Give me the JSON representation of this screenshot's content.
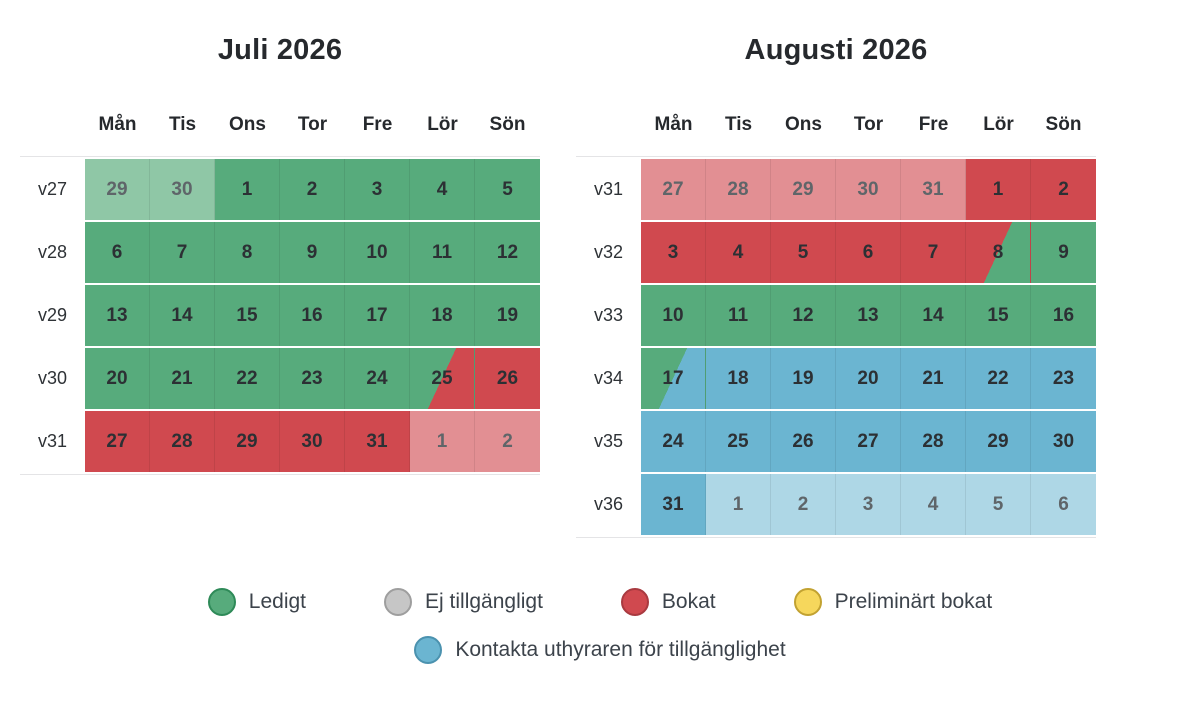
{
  "colors": {
    "free": "#57ab7c",
    "free_faded": "#8fc7a6",
    "booked": "#d0494f",
    "booked_faded": "#e28f93",
    "contact": "#6bb5d1",
    "contact_faded": "#aed7e6",
    "faded_text": "#5f6569",
    "day_text": "#2c3034"
  },
  "weekday_headers": [
    "Mån",
    "Tis",
    "Ons",
    "Tor",
    "Fre",
    "Lör",
    "Sön"
  ],
  "calendars": [
    {
      "title": "Juli 2026",
      "weeks": [
        {
          "label": "v27",
          "days": [
            {
              "n": "29",
              "s": "free-faded"
            },
            {
              "n": "30",
              "s": "free-faded"
            },
            {
              "n": "1",
              "s": "free"
            },
            {
              "n": "2",
              "s": "free"
            },
            {
              "n": "3",
              "s": "free"
            },
            {
              "n": "4",
              "s": "free"
            },
            {
              "n": "5",
              "s": "free"
            }
          ]
        },
        {
          "label": "v28",
          "days": [
            {
              "n": "6",
              "s": "free"
            },
            {
              "n": "7",
              "s": "free"
            },
            {
              "n": "8",
              "s": "free"
            },
            {
              "n": "9",
              "s": "free"
            },
            {
              "n": "10",
              "s": "free"
            },
            {
              "n": "11",
              "s": "free"
            },
            {
              "n": "12",
              "s": "free"
            }
          ]
        },
        {
          "label": "v29",
          "days": [
            {
              "n": "13",
              "s": "free"
            },
            {
              "n": "14",
              "s": "free"
            },
            {
              "n": "15",
              "s": "free"
            },
            {
              "n": "16",
              "s": "free"
            },
            {
              "n": "17",
              "s": "free"
            },
            {
              "n": "18",
              "s": "free"
            },
            {
              "n": "19",
              "s": "free"
            }
          ]
        },
        {
          "label": "v30",
          "days": [
            {
              "n": "20",
              "s": "free"
            },
            {
              "n": "21",
              "s": "free"
            },
            {
              "n": "22",
              "s": "free"
            },
            {
              "n": "23",
              "s": "free"
            },
            {
              "n": "24",
              "s": "free"
            },
            {
              "n": "25",
              "s": "free-booked"
            },
            {
              "n": "26",
              "s": "booked"
            }
          ]
        },
        {
          "label": "v31",
          "days": [
            {
              "n": "27",
              "s": "booked"
            },
            {
              "n": "28",
              "s": "booked"
            },
            {
              "n": "29",
              "s": "booked"
            },
            {
              "n": "30",
              "s": "booked"
            },
            {
              "n": "31",
              "s": "booked"
            },
            {
              "n": "1",
              "s": "booked-faded"
            },
            {
              "n": "2",
              "s": "booked-faded"
            }
          ]
        }
      ]
    },
    {
      "title": "Augusti 2026",
      "weeks": [
        {
          "label": "v31",
          "days": [
            {
              "n": "27",
              "s": "booked-faded"
            },
            {
              "n": "28",
              "s": "booked-faded"
            },
            {
              "n": "29",
              "s": "booked-faded"
            },
            {
              "n": "30",
              "s": "booked-faded"
            },
            {
              "n": "31",
              "s": "booked-faded"
            },
            {
              "n": "1",
              "s": "booked"
            },
            {
              "n": "2",
              "s": "booked"
            }
          ]
        },
        {
          "label": "v32",
          "days": [
            {
              "n": "3",
              "s": "booked"
            },
            {
              "n": "4",
              "s": "booked"
            },
            {
              "n": "5",
              "s": "booked"
            },
            {
              "n": "6",
              "s": "booked"
            },
            {
              "n": "7",
              "s": "booked"
            },
            {
              "n": "8",
              "s": "booked-free"
            },
            {
              "n": "9",
              "s": "free"
            }
          ]
        },
        {
          "label": "v33",
          "days": [
            {
              "n": "10",
              "s": "free"
            },
            {
              "n": "11",
              "s": "free"
            },
            {
              "n": "12",
              "s": "free"
            },
            {
              "n": "13",
              "s": "free"
            },
            {
              "n": "14",
              "s": "free"
            },
            {
              "n": "15",
              "s": "free"
            },
            {
              "n": "16",
              "s": "free"
            }
          ]
        },
        {
          "label": "v34",
          "days": [
            {
              "n": "17",
              "s": "free-contact"
            },
            {
              "n": "18",
              "s": "contact"
            },
            {
              "n": "19",
              "s": "contact"
            },
            {
              "n": "20",
              "s": "contact"
            },
            {
              "n": "21",
              "s": "contact"
            },
            {
              "n": "22",
              "s": "contact"
            },
            {
              "n": "23",
              "s": "contact"
            }
          ]
        },
        {
          "label": "v35",
          "days": [
            {
              "n": "24",
              "s": "contact"
            },
            {
              "n": "25",
              "s": "contact"
            },
            {
              "n": "26",
              "s": "contact"
            },
            {
              "n": "27",
              "s": "contact"
            },
            {
              "n": "28",
              "s": "contact"
            },
            {
              "n": "29",
              "s": "contact"
            },
            {
              "n": "30",
              "s": "contact"
            }
          ]
        },
        {
          "label": "v36",
          "days": [
            {
              "n": "31",
              "s": "contact"
            },
            {
              "n": "1",
              "s": "contact-faded"
            },
            {
              "n": "2",
              "s": "contact-faded"
            },
            {
              "n": "3",
              "s": "contact-faded"
            },
            {
              "n": "4",
              "s": "contact-faded"
            },
            {
              "n": "5",
              "s": "contact-faded"
            },
            {
              "n": "6",
              "s": "contact-faded"
            }
          ]
        }
      ]
    }
  ],
  "legend": {
    "rows": [
      [
        {
          "key": "free",
          "label": "Ledigt",
          "fill": "#57ab7c",
          "border": "#2e8a58"
        },
        {
          "key": "unavailable",
          "label": "Ej tillgängligt",
          "fill": "#c6c6c6",
          "border": "#9e9e9e"
        },
        {
          "key": "booked",
          "label": "Bokat",
          "fill": "#d0494f",
          "border": "#a93a40"
        },
        {
          "key": "preliminary",
          "label": "Preliminärt bokat",
          "fill": "#f6d75c",
          "border": "#c2a231"
        }
      ],
      [
        {
          "key": "contact",
          "label": "Kontakta uthyraren för tillgänglighet",
          "fill": "#6bb5d1",
          "border": "#4b92af"
        }
      ]
    ]
  }
}
